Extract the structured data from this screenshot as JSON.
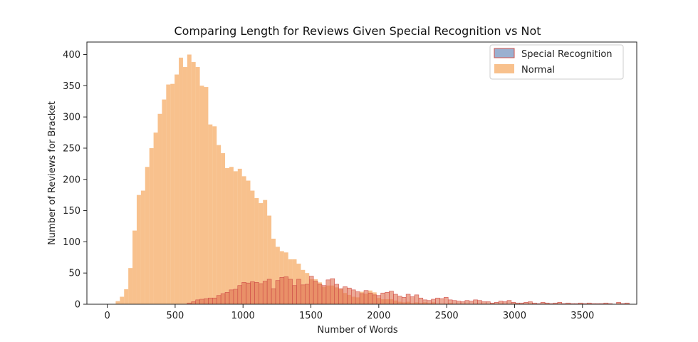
{
  "chart_data": {
    "type": "bar",
    "title": "Comparing Length for Reviews Given Special Recognition vs Not",
    "xlabel": "Number of Words",
    "ylabel": "Number of Reviews for Bracket",
    "xlim": [
      -150,
      3900
    ],
    "ylim": [
      0,
      420
    ],
    "x_ticks": [
      0,
      500,
      1000,
      1500,
      2000,
      2500,
      3000,
      3500
    ],
    "y_ticks": [
      0,
      50,
      100,
      150,
      200,
      250,
      300,
      350,
      400
    ],
    "grid": false,
    "legend_position": "top-right",
    "bin_width": 31,
    "series": [
      {
        "name": "Special Recognition",
        "color": "#e07050",
        "stroke": "#d0504a",
        "opacity": 0.6,
        "bin_start": 0,
        "values": [
          0,
          0,
          0,
          0,
          0,
          0,
          0,
          0,
          0,
          0,
          0,
          0,
          0,
          0,
          0,
          0,
          0,
          0,
          0,
          2,
          4,
          7,
          8,
          9,
          10,
          10,
          14,
          17,
          19,
          23,
          24,
          30,
          35,
          34,
          36,
          35,
          33,
          37,
          40,
          25,
          38,
          43,
          44,
          40,
          30,
          40,
          31,
          32,
          45,
          37,
          32,
          30,
          39,
          41,
          32,
          25,
          28,
          26,
          23,
          20,
          17,
          22,
          18,
          15,
          14,
          18,
          19,
          21,
          16,
          13,
          11,
          16,
          12,
          15,
          10,
          7,
          6,
          8,
          10,
          9,
          11,
          7,
          6,
          5,
          4,
          6,
          5,
          7,
          6,
          4,
          4,
          2,
          3,
          5,
          4,
          6,
          3,
          2,
          2,
          3,
          4,
          2,
          1,
          3,
          2,
          1,
          2,
          3,
          1,
          2,
          1,
          1,
          2,
          1,
          2,
          1,
          1,
          1,
          2,
          1,
          0,
          3,
          1,
          2
        ]
      },
      {
        "name": "Normal",
        "color": "#f5a050",
        "opacity": 0.65,
        "bin_start": 0,
        "values": [
          0,
          0,
          5,
          12,
          24,
          58,
          118,
          175,
          182,
          220,
          250,
          275,
          305,
          328,
          352,
          353,
          368,
          395,
          380,
          400,
          388,
          380,
          350,
          348,
          288,
          285,
          255,
          242,
          218,
          220,
          213,
          217,
          205,
          198,
          182,
          170,
          162,
          167,
          142,
          105,
          92,
          85,
          83,
          72,
          72,
          65,
          55,
          50,
          40,
          40,
          35,
          28,
          30,
          30,
          27,
          24,
          18,
          15,
          12,
          11,
          20,
          17,
          22,
          19,
          10,
          8,
          8,
          8,
          6,
          4,
          3,
          4,
          2,
          3,
          2,
          3,
          2,
          3,
          1,
          1,
          1,
          2,
          1,
          1,
          1,
          1,
          0,
          1,
          1,
          1,
          0,
          1,
          0,
          1,
          0,
          0,
          1,
          0,
          0,
          0,
          1,
          0,
          0,
          0,
          0,
          1,
          0,
          0,
          0,
          0,
          0,
          0,
          0,
          0,
          0,
          0,
          0,
          1,
          0,
          0,
          0,
          1
        ]
      }
    ]
  }
}
